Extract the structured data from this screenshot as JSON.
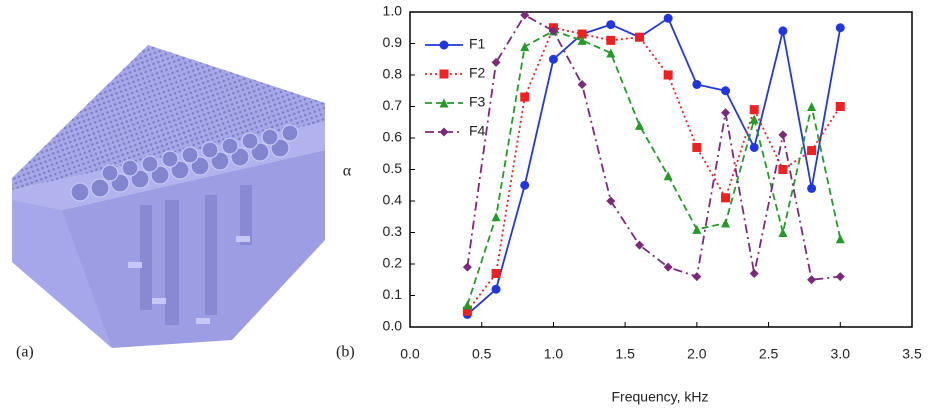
{
  "panel_labels": {
    "a": "(a)",
    "b": "(b)"
  },
  "chart_data": {
    "type": "line",
    "x_label": "Frequency, kHz",
    "y_label": "α",
    "x": [
      0.4,
      0.6,
      0.8,
      1.0,
      1.2,
      1.4,
      1.6,
      1.8,
      2.0,
      2.2,
      2.4,
      2.6,
      2.8,
      3.0
    ],
    "series": [
      {
        "name": "F1",
        "color": "#2236dd",
        "dash": "solid",
        "marker": "circle",
        "values": [
          0.04,
          0.12,
          0.45,
          0.85,
          0.93,
          0.96,
          0.92,
          0.98,
          0.77,
          0.75,
          0.57,
          0.94,
          0.44,
          0.95
        ]
      },
      {
        "name": "F2",
        "color": "#ee2020",
        "dash": "dotted",
        "marker": "square",
        "values": [
          0.05,
          0.17,
          0.73,
          0.95,
          0.93,
          0.91,
          0.92,
          0.8,
          0.57,
          0.41,
          0.69,
          0.5,
          0.56,
          0.7
        ]
      },
      {
        "name": "F3",
        "color": "#27992a",
        "dash": "dashed",
        "marker": "triangle",
        "values": [
          0.07,
          0.35,
          0.89,
          0.94,
          0.91,
          0.87,
          0.64,
          0.48,
          0.31,
          0.33,
          0.66,
          0.3,
          0.7,
          0.28
        ]
      },
      {
        "name": "F4",
        "color": "#7a2a78",
        "dash": "dashdot",
        "marker": "diamond",
        "values": [
          0.19,
          0.84,
          0.99,
          0.94,
          0.77,
          0.4,
          0.26,
          0.19,
          0.16,
          0.68,
          0.17,
          0.61,
          0.15,
          0.16
        ]
      }
    ],
    "xlim": [
      0,
      3.5
    ],
    "xticks": [
      {
        "value": 0,
        "label": "0.0"
      },
      0.5,
      {
        "value": 1,
        "label": "1.0"
      },
      1.5,
      {
        "value": 2,
        "label": "2.0"
      },
      2.5,
      {
        "value": 3,
        "label": "3.0"
      },
      3.5
    ],
    "ylim": [
      0,
      1
    ],
    "yticks": [
      {
        "value": 0,
        "label": "0.0"
      },
      0.1,
      0.2,
      0.3,
      0.4,
      0.5,
      0.6,
      0.7,
      0.8,
      0.9,
      {
        "value": 1,
        "label": "1.0"
      }
    ],
    "legend": "upper-left",
    "grid": false
  }
}
